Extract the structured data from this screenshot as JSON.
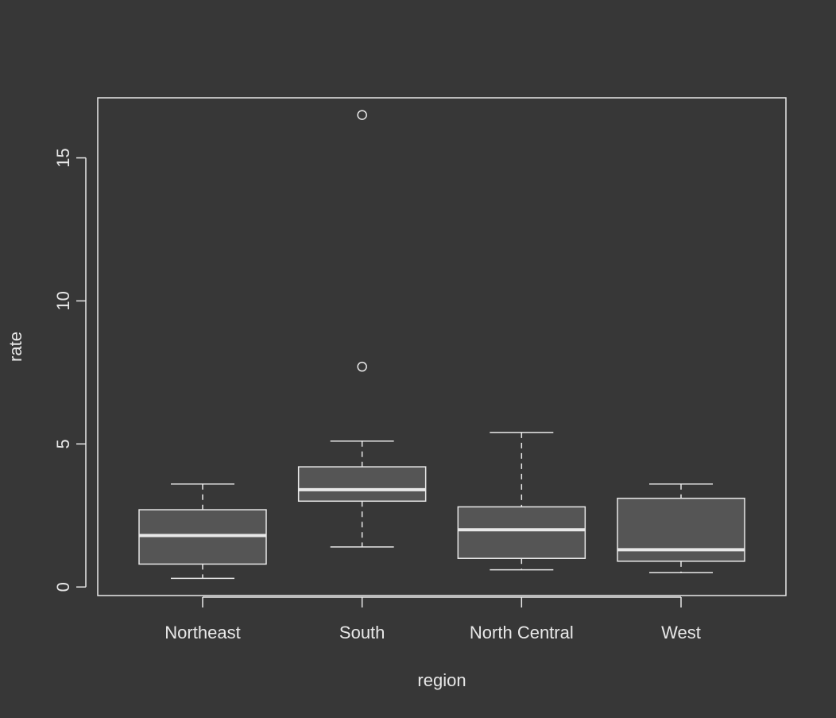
{
  "chart_data": {
    "type": "box",
    "xlabel": "region",
    "ylabel": "rate",
    "ylim": [
      -0.3,
      17.1
    ],
    "yticks": [
      0,
      5,
      10,
      15
    ],
    "ytick_labels": [
      "0",
      "5",
      "10",
      "15"
    ],
    "grid": false,
    "categories": [
      "Northeast",
      "South",
      "North Central",
      "West"
    ],
    "boxes": [
      {
        "category": "Northeast",
        "whisker_low": 0.3,
        "q1": 0.8,
        "median": 1.8,
        "q3": 2.7,
        "whisker_high": 3.6,
        "outliers": []
      },
      {
        "category": "South",
        "whisker_low": 1.4,
        "q1": 3.0,
        "median": 3.4,
        "q3": 4.2,
        "whisker_high": 5.1,
        "outliers": [
          7.7,
          16.5
        ]
      },
      {
        "category": "North Central",
        "whisker_low": 0.6,
        "q1": 1.0,
        "median": 2.0,
        "q3": 2.8,
        "whisker_high": 5.4,
        "outliers": []
      },
      {
        "category": "West",
        "whisker_low": 0.5,
        "q1": 0.9,
        "median": 1.3,
        "q3": 3.1,
        "whisker_high": 3.6,
        "outliers": []
      }
    ]
  }
}
